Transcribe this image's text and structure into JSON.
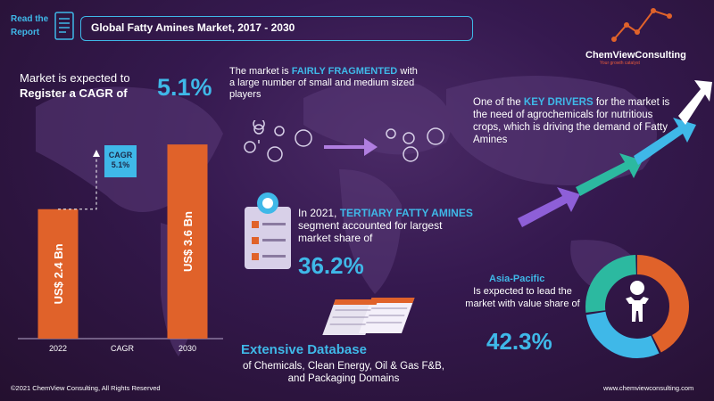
{
  "header": {
    "read_the": "Read the",
    "report": "Report",
    "title": "Global Fatty Amines Market, 2017 - 2030"
  },
  "logo": {
    "name": "ChemViewConsulting",
    "tagline": "Your growth catalyst"
  },
  "cagr": {
    "line1": "Market is expected to",
    "line2": "Register a CAGR of",
    "value": "5.1%"
  },
  "fragmented": {
    "pre": "The market is ",
    "highlight": "FAIRLY FRAGMENTED",
    "post": " with a large number of small and medium sized players"
  },
  "drivers": {
    "pre": "One of the ",
    "highlight": "KEY DRIVERS",
    "post": " for the market is the need of agrochemicals for nutritious crops, which is driving the demand of Fatty Amines"
  },
  "tertiary": {
    "pre": "In 2021, ",
    "highlight": "TERTIARY FATTY AMINES",
    "post": " segment accounted for largest market share of",
    "value": "36.2%"
  },
  "asia_pacific": {
    "title": "Asia-Pacific",
    "text": "Is expected to lead the market with value share of",
    "value": "42.3%"
  },
  "database": {
    "title": "Extensive Database",
    "text": "of Chemicals, Clean Energy, Oil & Gas F&B, and Packaging Domains"
  },
  "footer": {
    "copyright": "©2021  ChemView  Consulting,  All  Rights  Reserved",
    "website": "www.chemviewconsulting.com"
  },
  "colors": {
    "accent": "#3fb8e8",
    "bar": "#e0622a",
    "teal": "#2cb9a0",
    "purple": "#8e5fd8"
  },
  "chart_data": {
    "type": "bar",
    "categories": [
      "2022",
      "CAGR",
      "2030"
    ],
    "values": [
      2.4,
      null,
      3.6
    ],
    "bar_labels": [
      "US$ 2.4 Bn",
      "",
      "US$ 3.6 Bn"
    ],
    "cagr_label": "CAGR",
    "cagr_value": "5.1%",
    "ylim": [
      0,
      3.8
    ]
  },
  "donut": {
    "segments": [
      42.3,
      30,
      27.7
    ]
  }
}
